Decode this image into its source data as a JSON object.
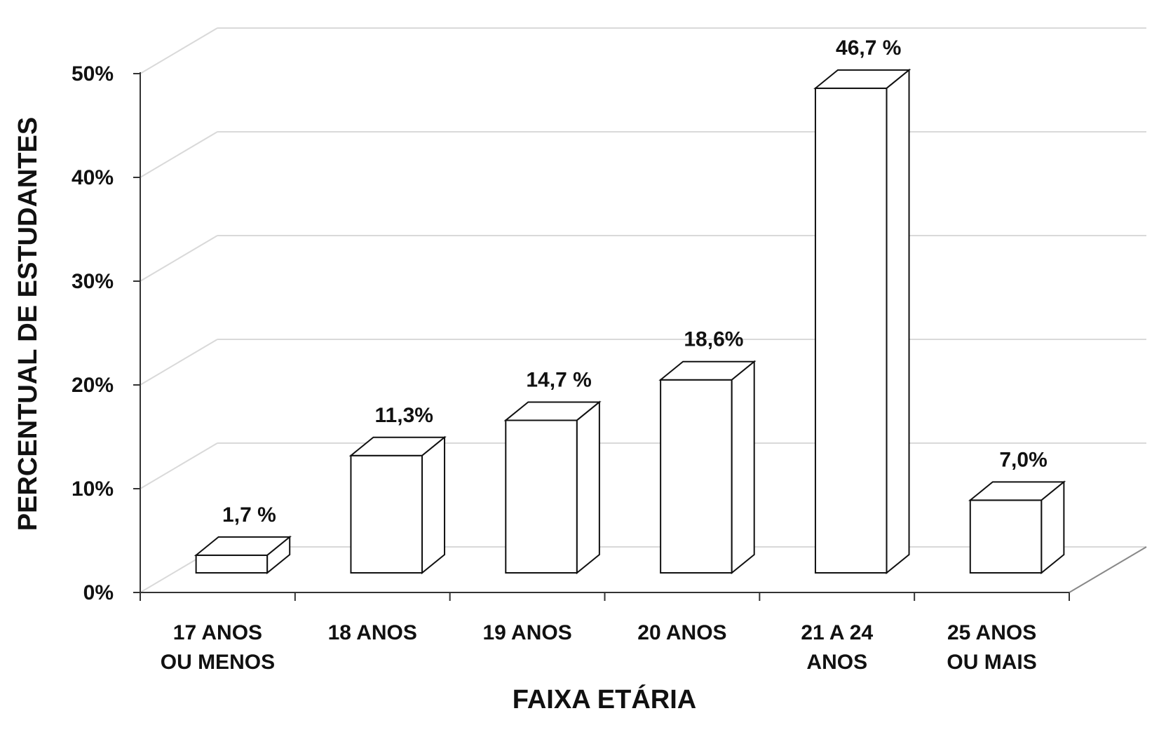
{
  "chart_data": {
    "type": "bar",
    "three_d": true,
    "categories": [
      [
        "17 ANOS",
        "OU MENOS"
      ],
      [
        "18 ANOS"
      ],
      [
        "19 ANOS"
      ],
      [
        "20 ANOS"
      ],
      [
        "21 A 24",
        "ANOS"
      ],
      [
        "25 ANOS",
        "OU MAIS"
      ]
    ],
    "values": [
      1.7,
      11.3,
      14.7,
      18.6,
      46.7,
      7.0
    ],
    "data_labels": [
      "1,7 %",
      "11,3%",
      "14,7 %",
      "18,6%",
      "46,7 %",
      "7,0%"
    ],
    "ylabel": "PERCENTUAL DE ESTUDANTES",
    "xlabel": "FAIXA ETÁRIA",
    "ylim": [
      0,
      50
    ],
    "yticks": [
      {
        "value": 0,
        "label": "0%"
      },
      {
        "value": 10,
        "label": "10%"
      },
      {
        "value": 20,
        "label": "20%"
      },
      {
        "value": 30,
        "label": "30%"
      },
      {
        "value": 40,
        "label": "40%"
      },
      {
        "value": 50,
        "label": "50%"
      }
    ],
    "grid": true,
    "bar_fill": "#ffffff",
    "bar_stroke": "#111111",
    "grid_color": "#d9d9d9",
    "axis_color": "#333333"
  }
}
